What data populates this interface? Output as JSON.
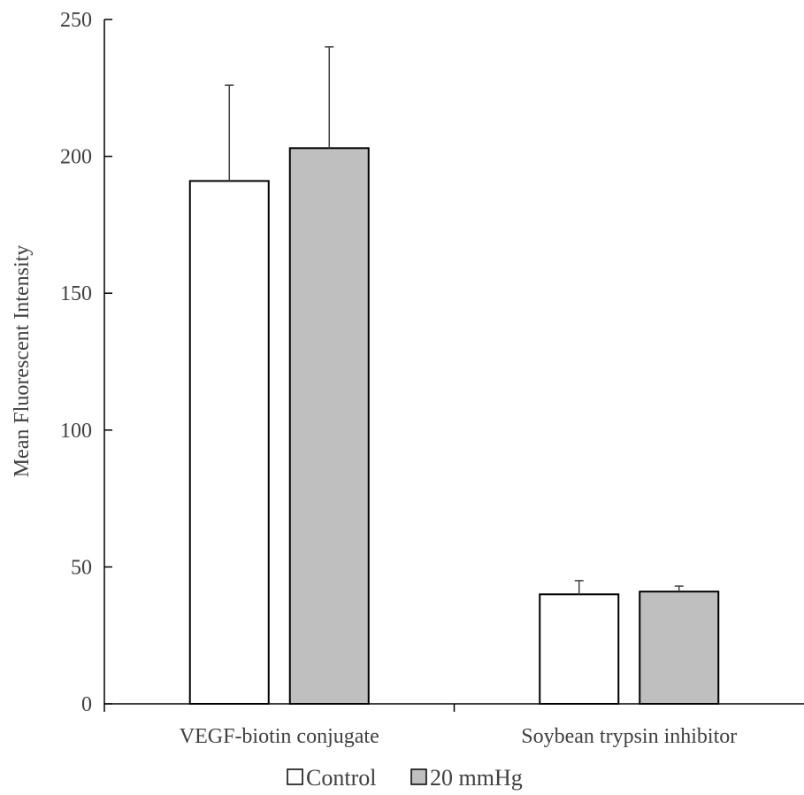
{
  "chart_data": {
    "type": "bar",
    "title": "",
    "xlabel": "",
    "ylabel": "Mean Fluorescent Intensity",
    "ylim": [
      0,
      250
    ],
    "yticks": [
      0,
      50,
      100,
      150,
      200,
      250
    ],
    "categories": [
      "VEGF-biotin conjugate",
      "Soybean trypsin inhibitor"
    ],
    "series": [
      {
        "name": "Control",
        "values": [
          191,
          40
        ],
        "errors": [
          35,
          5
        ],
        "color": "#ffffff"
      },
      {
        "name": "20 mmHg",
        "values": [
          203,
          41
        ],
        "errors": [
          37,
          2
        ],
        "color": "#bfbfbf"
      }
    ],
    "grid": false,
    "legend_position": "bottom"
  }
}
